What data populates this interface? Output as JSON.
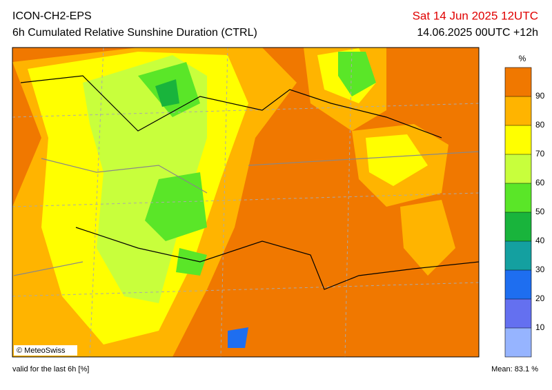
{
  "header": {
    "title": "ICON-CH2-EPS",
    "subtitle": "6h Cumulated Relative Sunshine Duration (CTRL)",
    "valid_time": "Sat 14 Jun 2025 12UTC",
    "run": "14.06.2025 00UTC +12h"
  },
  "colorbar": {
    "unit": "%",
    "ticks": [
      10,
      20,
      30,
      40,
      50,
      60,
      70,
      80,
      90
    ],
    "colors": [
      "#96b4ff",
      "#6470f0",
      "#1e6ef0",
      "#14a0a0",
      "#19b43c",
      "#5ae628",
      "#c8ff3c",
      "#ffff00",
      "#ffb400",
      "#f07800"
    ]
  },
  "map": {
    "copyright": "© MeteoSwiss"
  },
  "footer": {
    "note": "valid for the last 6h [%]",
    "mean": "Mean:  83.1 %"
  }
}
